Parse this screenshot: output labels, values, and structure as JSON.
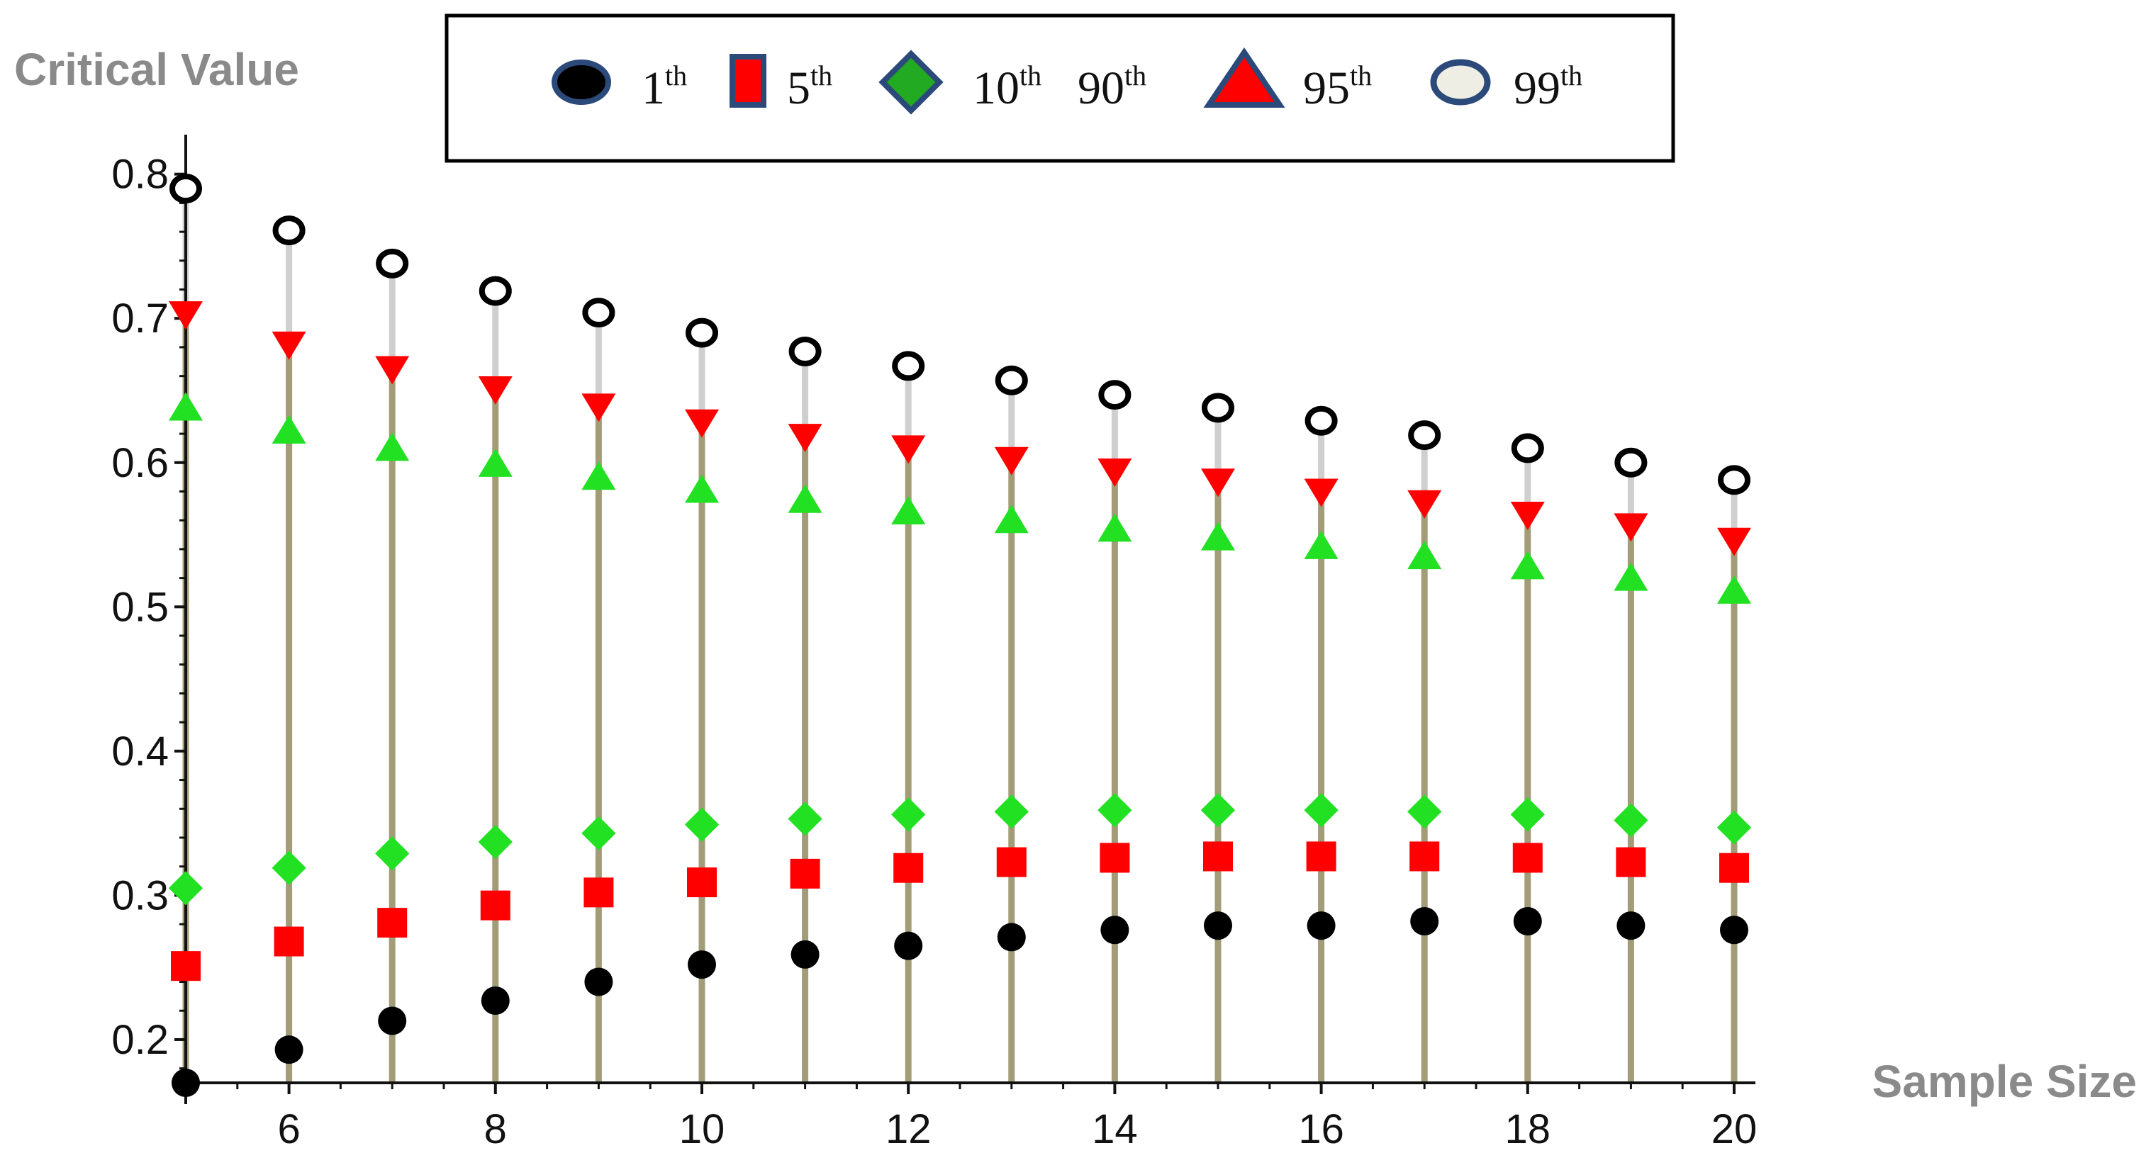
{
  "chart_data": {
    "type": "scatter",
    "title": "",
    "ylabel": "Critical Value",
    "xlabel": "Sample Size",
    "xlim": [
      5,
      20
    ],
    "ylim": [
      0.17,
      0.82
    ],
    "x_ticks": [
      6,
      8,
      10,
      12,
      14,
      16,
      18,
      20
    ],
    "y_ticks": [
      0.2,
      0.3,
      0.4,
      0.5,
      0.6,
      0.7,
      0.8
    ],
    "x_tick_labels": [
      "6",
      "8",
      "10",
      "12",
      "14",
      "16",
      "18",
      "20"
    ],
    "y_tick_labels": [
      "0.2",
      "0.3",
      "0.4",
      "0.5",
      "0.6",
      "0.7",
      "0.8"
    ],
    "grid": false,
    "legend_position": "top",
    "x": [
      5,
      6,
      7,
      8,
      9,
      10,
      11,
      12,
      13,
      14,
      15,
      16,
      17,
      18,
      19,
      20
    ],
    "series": [
      {
        "key": "p1",
        "name_base": "1",
        "name_sup": "th",
        "color": "#000000",
        "marker": "circle",
        "values": [
          0.17,
          0.193,
          0.213,
          0.227,
          0.24,
          0.252,
          0.259,
          0.265,
          0.271,
          0.276,
          0.279,
          0.279,
          0.282,
          0.282,
          0.279,
          0.276
        ]
      },
      {
        "key": "p5",
        "name_base": "5",
        "name_sup": "th",
        "color": "#ff0000",
        "marker": "square",
        "values": [
          0.251,
          0.268,
          0.281,
          0.293,
          0.302,
          0.309,
          0.315,
          0.319,
          0.323,
          0.326,
          0.327,
          0.327,
          0.327,
          0.326,
          0.323,
          0.319
        ]
      },
      {
        "key": "p10",
        "name_base": "10",
        "name_sup": "th",
        "color": "#22e022",
        "marker": "diamond",
        "values": [
          0.305,
          0.319,
          0.329,
          0.337,
          0.343,
          0.349,
          0.353,
          0.356,
          0.358,
          0.359,
          0.359,
          0.359,
          0.358,
          0.356,
          0.352,
          0.347
        ]
      },
      {
        "key": "p90",
        "name_base": "90",
        "name_sup": "th",
        "color": "#22e022",
        "marker": "triangle-up",
        "values": [
          0.638,
          0.622,
          0.61,
          0.599,
          0.59,
          0.581,
          0.574,
          0.566,
          0.56,
          0.554,
          0.548,
          0.542,
          0.535,
          0.528,
          0.52,
          0.511
        ]
      },
      {
        "key": "p95",
        "name_base": "95",
        "name_sup": "th",
        "color": "#ff0000",
        "marker": "triangle-down",
        "values": [
          0.703,
          0.682,
          0.665,
          0.651,
          0.639,
          0.628,
          0.618,
          0.61,
          0.602,
          0.594,
          0.587,
          0.58,
          0.572,
          0.564,
          0.556,
          0.546
        ]
      },
      {
        "key": "p99",
        "name_base": "99",
        "name_sup": "th",
        "color": "#000000",
        "marker": "open-circle",
        "values": [
          0.79,
          0.761,
          0.738,
          0.719,
          0.704,
          0.69,
          0.677,
          0.667,
          0.657,
          0.647,
          0.638,
          0.629,
          0.619,
          0.61,
          0.6,
          0.588
        ]
      }
    ],
    "legend_entries": [
      {
        "marker": "circle-navy",
        "base": "1",
        "sup": "th"
      },
      {
        "marker": "square-red",
        "base": "5",
        "sup": "th"
      },
      {
        "marker": "diamond-green",
        "base": "10",
        "sup": "th"
      },
      {
        "marker": "none",
        "base": "90",
        "sup": "th"
      },
      {
        "marker": "triangle-red",
        "base": "95",
        "sup": "th"
      },
      {
        "marker": "open-circle-navy",
        "base": "99",
        "sup": "th"
      }
    ],
    "colors": {
      "stem_dark": "#a39c78",
      "stem_light": "#cfcfcf",
      "axis": "#111111",
      "axis_title": "#8a8a8a",
      "legend_outline": "#2b4a7a"
    }
  }
}
